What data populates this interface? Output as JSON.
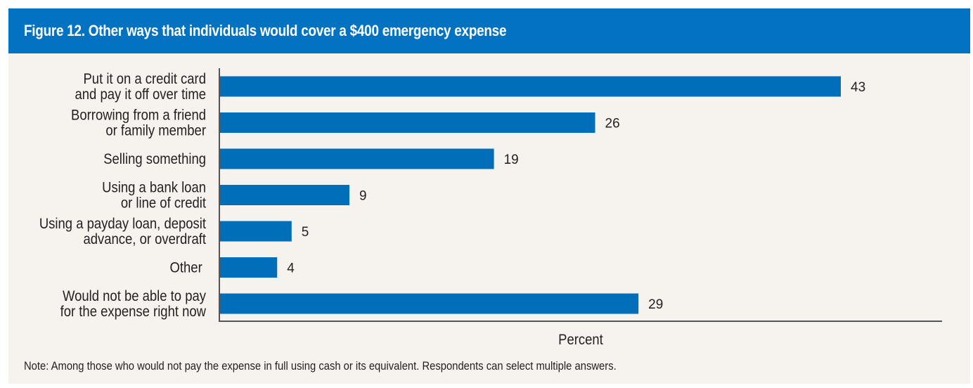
{
  "header": {
    "title": "Figure 12. Other ways that individuals would cover a $400 emergency expense"
  },
  "note": "Note: Among those who would not pay the expense in full using cash or its equivalent. Respondents can select multiple answers.",
  "colors": {
    "title_bar": "#0272C1",
    "bar": "#006EB9",
    "panel_background": "#F6F3EE",
    "axis": "#555555",
    "text": "#231F20"
  },
  "chart_data": {
    "type": "bar",
    "orientation": "horizontal",
    "title": "Figure 12. Other ways that individuals would cover a $400 emergency expense",
    "xlabel": "Percent",
    "ylabel": "",
    "xlim": [
      0,
      50
    ],
    "grid": false,
    "legend": "none",
    "categories": [
      [
        "Put it on a credit card",
        "and pay it off over time"
      ],
      [
        "Borrowing from a friend",
        "or family member"
      ],
      [
        "Selling something"
      ],
      [
        "Using a bank loan",
        "or line of credit"
      ],
      [
        "Using a payday loan, deposit",
        "advance, or overdraft"
      ],
      [
        "Other"
      ],
      [
        "Would not be able to pay",
        "for the expense right now"
      ]
    ],
    "values": [
      43,
      26,
      19,
      9,
      5,
      4,
      29
    ],
    "value_labels": [
      "43",
      "26",
      "19",
      "9",
      "5",
      "4",
      "29"
    ]
  }
}
